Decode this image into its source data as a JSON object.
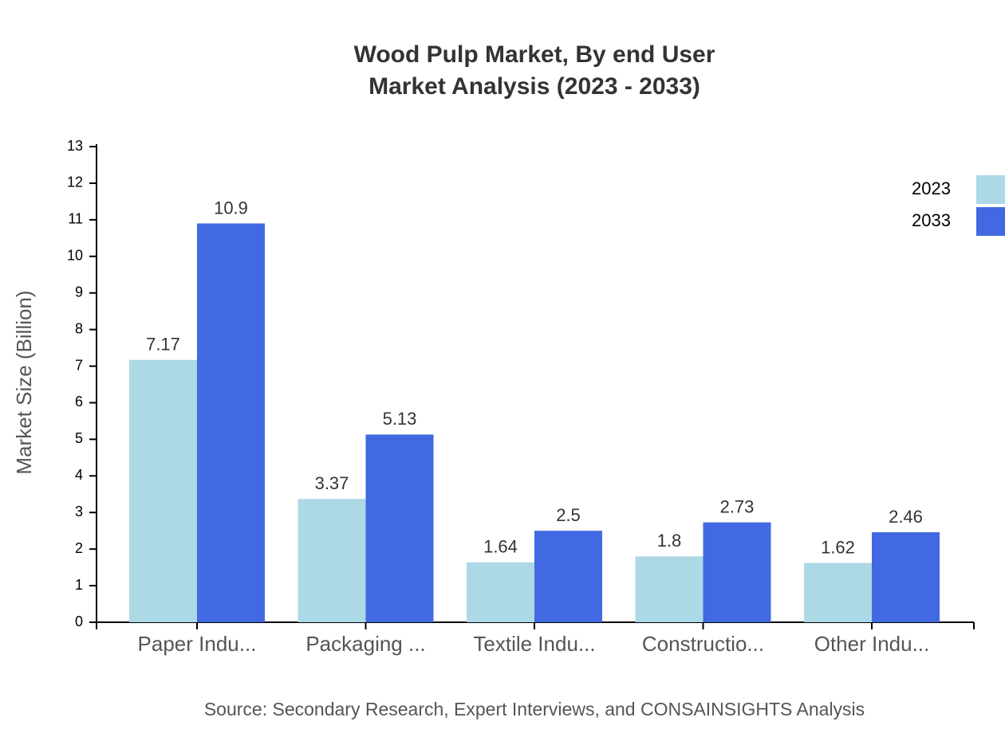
{
  "chart_data": {
    "type": "bar",
    "title": "Wood Pulp Market, By end User",
    "subtitle": "Market Analysis (2023 - 2033)",
    "y_label": "Market Size (Billion)",
    "source": "Source: Secondary Research, Expert Interviews, and CONSAINSIGHTS Analysis",
    "categories": [
      "Paper Indu...",
      "Packaging ...",
      "Textile Indu...",
      "Constructio...",
      "Other Indu..."
    ],
    "series": [
      {
        "name": "2023",
        "color": "#add8e6",
        "values": [
          7.17,
          3.37,
          1.64,
          1.8,
          1.62
        ]
      },
      {
        "name": "2033",
        "color": "#4169e1",
        "values": [
          10.9,
          5.13,
          2.5,
          2.73,
          2.46
        ]
      }
    ],
    "ylim": [
      0,
      13
    ],
    "yticks": [
      0,
      1,
      2,
      3,
      4,
      5,
      6,
      7,
      8,
      9,
      10,
      11,
      12,
      13
    ],
    "legend": "top-right"
  }
}
